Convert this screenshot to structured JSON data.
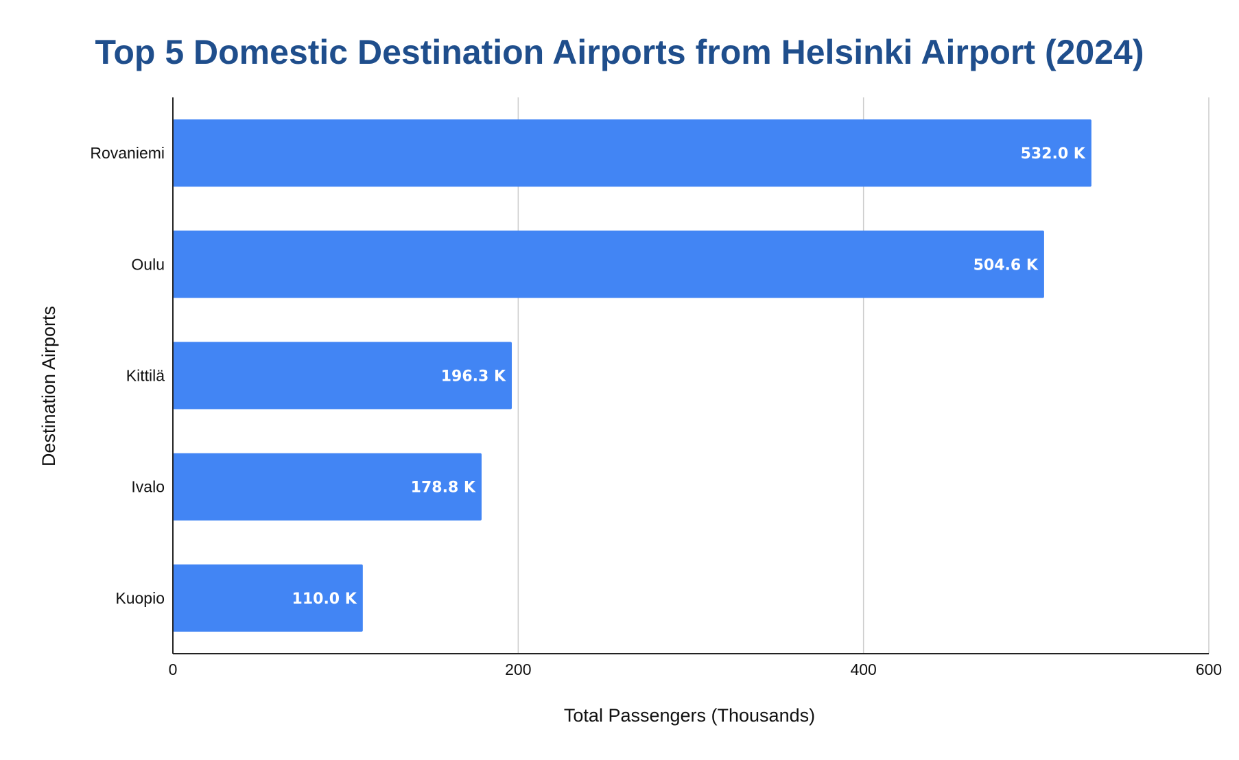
{
  "chart_data": {
    "type": "bar",
    "orientation": "horizontal",
    "title": "Top 5 Domestic Destination Airports from Helsinki Airport (2024)",
    "xlabel": "Total Passengers (Thousands)",
    "ylabel": "Destination Airports",
    "categories": [
      "Rovaniemi",
      "Oulu",
      "Kittilä",
      "Ivalo",
      "Kuopio"
    ],
    "values": [
      532.0,
      504.6,
      196.3,
      178.8,
      110.0
    ],
    "data_labels": [
      "532.0 K",
      "504.6 K",
      "196.3 K",
      "178.8 K",
      "110.0 K"
    ],
    "xlim": [
      0,
      600
    ],
    "xticks": [
      0,
      200,
      400,
      600
    ],
    "xtick_labels": [
      "0",
      "200",
      "400",
      "600"
    ],
    "grid": true,
    "legend": "none",
    "colors": {
      "bar": "#4285f4",
      "title": "#1f4e8c",
      "grid": "#cccccc",
      "axis": "#222222"
    }
  }
}
